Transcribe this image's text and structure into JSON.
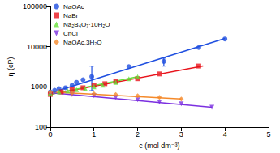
{
  "chart_data": {
    "type": "scatter",
    "xlabel": "c (mol dm⁻³)",
    "ylabel": "η (cP)",
    "log": "y",
    "grid": false,
    "legend": "upper left",
    "xlim": [
      0,
      5
    ],
    "xticks": [
      0,
      1,
      2,
      3,
      4,
      5
    ],
    "ylim": [
      100,
      100000
    ],
    "yticks": [
      100,
      1000,
      10000,
      100000
    ],
    "series": [
      {
        "name": "NaOAc",
        "color": "#1f4fe0",
        "marker": "circle",
        "x": [
          0,
          0.1,
          0.2,
          0.35,
          0.5,
          0.6,
          0.75,
          0.95,
          1.8,
          2.6,
          3.4,
          4.0
        ],
        "values": [
          750,
          820,
          900,
          950,
          1100,
          1300,
          1500,
          1800,
          3200,
          4300,
          9500,
          15500
        ],
        "error_low": [
          null,
          null,
          null,
          null,
          null,
          null,
          null,
          800,
          null,
          3300,
          null,
          null
        ],
        "error_high": [
          null,
          null,
          null,
          null,
          null,
          null,
          null,
          3300,
          null,
          5200,
          null,
          null
        ],
        "fit_x": [
          0,
          4.0
        ],
        "fit_values": [
          700,
          16000
        ]
      },
      {
        "name": "NaBr",
        "color": "#e8141c",
        "marker": "square",
        "x": [
          0,
          0.25,
          0.5,
          0.75,
          1.0,
          1.25,
          1.5,
          2.0,
          2.5,
          3.4
        ],
        "values": [
          650,
          750,
          850,
          950,
          1100,
          1200,
          1350,
          1600,
          2100,
          3300
        ],
        "fit_x": [
          0,
          3.5
        ],
        "fit_values": [
          650,
          3300
        ]
      },
      {
        "name": "Na₂B₄O₇·10H₂O",
        "color": "#66e03a",
        "marker": "triangle",
        "x": [
          0,
          0.2,
          0.4,
          0.6,
          0.8,
          1.0,
          1.2,
          1.5,
          1.8,
          2.0
        ],
        "values": [
          700,
          750,
          800,
          850,
          900,
          1000,
          1100,
          1300,
          1600,
          1800
        ],
        "fit_x": [
          0,
          2.0
        ],
        "fit_values": [
          650,
          1800
        ]
      },
      {
        "name": "ChCl",
        "color": "#7b2fe0",
        "marker": "triangle-down",
        "x": [
          0,
          0.5,
          1.0,
          1.5,
          2.0,
          2.5,
          3.0,
          3.7
        ],
        "values": [
          700,
          650,
          600,
          550,
          480,
          420,
          380,
          310
        ],
        "fit_x": [
          0,
          3.7
        ],
        "fit_values": [
          720,
          310
        ]
      },
      {
        "name": "NaOAc.3H₂O",
        "color": "#f58a2a",
        "marker": "diamond",
        "x": [
          0,
          0.5,
          1.0,
          1.5,
          2.0,
          2.5,
          3.0
        ],
        "values": [
          750,
          700,
          680,
          650,
          600,
          550,
          500
        ],
        "fit_x": [
          0,
          3.0
        ],
        "fit_values": [
          750,
          500
        ]
      }
    ]
  }
}
